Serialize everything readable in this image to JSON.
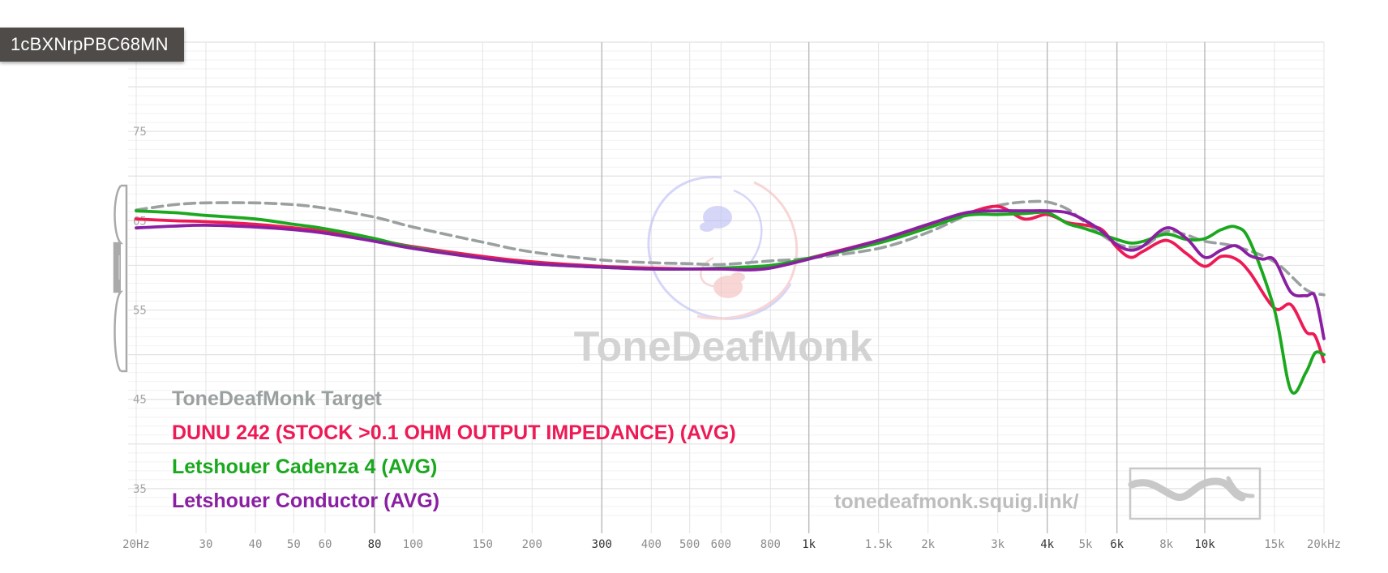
{
  "badge": "1cBXNrpPBC68MN",
  "watermark": "ToneDeafMonk",
  "url": "tonedeafmonk.squig.link/",
  "colors": {
    "target": "#9aa0a0",
    "dunu": "#ee1a55",
    "cadenza": "#1aa81e",
    "conductor": "#8a1fa2",
    "grid": "#e6e6e6",
    "grid_major": "#b9b9b9"
  },
  "chart_data": {
    "type": "line",
    "title": "",
    "xlabel": "",
    "ylabel": "",
    "x_scale": "log",
    "xlim": [
      20,
      20000
    ],
    "ylim": [
      30,
      85
    ],
    "grid": true,
    "legend_position": "bottom-left",
    "x_ticks": [
      {
        "v": 20,
        "label": "20Hz",
        "major": false
      },
      {
        "v": 30,
        "label": "30",
        "major": false
      },
      {
        "v": 40,
        "label": "40",
        "major": false
      },
      {
        "v": 50,
        "label": "50",
        "major": false
      },
      {
        "v": 60,
        "label": "60",
        "major": false
      },
      {
        "v": 80,
        "label": "80",
        "major": true
      },
      {
        "v": 100,
        "label": "100",
        "major": false
      },
      {
        "v": 150,
        "label": "150",
        "major": false
      },
      {
        "v": 200,
        "label": "200",
        "major": false
      },
      {
        "v": 300,
        "label": "300",
        "major": true
      },
      {
        "v": 400,
        "label": "400",
        "major": false
      },
      {
        "v": 500,
        "label": "500",
        "major": false
      },
      {
        "v": 600,
        "label": "600",
        "major": false
      },
      {
        "v": 800,
        "label": "800",
        "major": false
      },
      {
        "v": 1000,
        "label": "1k",
        "major": true
      },
      {
        "v": 1500,
        "label": "1.5k",
        "major": false
      },
      {
        "v": 2000,
        "label": "2k",
        "major": false
      },
      {
        "v": 3000,
        "label": "3k",
        "major": false
      },
      {
        "v": 4000,
        "label": "4k",
        "major": true
      },
      {
        "v": 5000,
        "label": "5k",
        "major": false
      },
      {
        "v": 6000,
        "label": "6k",
        "major": true
      },
      {
        "v": 8000,
        "label": "8k",
        "major": false
      },
      {
        "v": 10000,
        "label": "10k",
        "major": true
      },
      {
        "v": 15000,
        "label": "15k",
        "major": false
      },
      {
        "v": 20000,
        "label": "20kHz",
        "major": false
      }
    ],
    "y_ticks": [
      {
        "v": 75,
        "label": "75"
      },
      {
        "v": 65,
        "label": "65"
      },
      {
        "v": 55,
        "label": "55"
      },
      {
        "v": 45,
        "label": "45"
      },
      {
        "v": 35,
        "label": "35"
      }
    ],
    "series": [
      {
        "name": "ToneDeafMonk Target",
        "color": "#9aa0a0",
        "dashed": true,
        "points": [
          [
            20,
            66.2
          ],
          [
            25,
            66.8
          ],
          [
            30,
            67.0
          ],
          [
            40,
            67.0
          ],
          [
            50,
            66.8
          ],
          [
            60,
            66.4
          ],
          [
            80,
            65.4
          ],
          [
            100,
            64.3
          ],
          [
            150,
            62.6
          ],
          [
            200,
            61.5
          ],
          [
            300,
            60.6
          ],
          [
            400,
            60.3
          ],
          [
            500,
            60.2
          ],
          [
            600,
            60.1
          ],
          [
            800,
            60.5
          ],
          [
            1000,
            60.8
          ],
          [
            1500,
            61.9
          ],
          [
            2000,
            63.7
          ],
          [
            2500,
            65.6
          ],
          [
            3000,
            66.7
          ],
          [
            3500,
            67.1
          ],
          [
            4000,
            67.1
          ],
          [
            4500,
            66.3
          ],
          [
            5000,
            64.8
          ],
          [
            6000,
            62.4
          ],
          [
            7000,
            62.2
          ],
          [
            8000,
            63.8
          ],
          [
            9000,
            63.4
          ],
          [
            10000,
            62.7
          ],
          [
            12000,
            62.1
          ],
          [
            15000,
            60.4
          ],
          [
            18000,
            57.3
          ],
          [
            20000,
            56.7
          ]
        ]
      },
      {
        "name": "DUNU 242 (STOCK >0.1 OHM OUTPUT IMPEDANCE) (AVG)",
        "color": "#ee1a55",
        "dashed": false,
        "points": [
          [
            20,
            65.2
          ],
          [
            25,
            65.0
          ],
          [
            30,
            64.9
          ],
          [
            40,
            64.6
          ],
          [
            50,
            64.2
          ],
          [
            60,
            63.8
          ],
          [
            80,
            62.9
          ],
          [
            100,
            62.1
          ],
          [
            150,
            61.0
          ],
          [
            200,
            60.4
          ],
          [
            300,
            59.9
          ],
          [
            400,
            59.7
          ],
          [
            500,
            59.6
          ],
          [
            600,
            59.6
          ],
          [
            700,
            59.6
          ],
          [
            800,
            59.8
          ],
          [
            1000,
            60.8
          ],
          [
            1500,
            62.8
          ],
          [
            2000,
            64.5
          ],
          [
            2500,
            65.8
          ],
          [
            3000,
            66.6
          ],
          [
            3500,
            65.2
          ],
          [
            4000,
            65.7
          ],
          [
            4500,
            64.8
          ],
          [
            5000,
            64.5
          ],
          [
            5500,
            64.0
          ],
          [
            6000,
            62.0
          ],
          [
            6500,
            60.9
          ],
          [
            7000,
            61.6
          ],
          [
            8000,
            62.8
          ],
          [
            9000,
            61.3
          ],
          [
            10000,
            59.9
          ],
          [
            11000,
            61.0
          ],
          [
            12000,
            60.7
          ],
          [
            13000,
            59.2
          ],
          [
            15000,
            55.2
          ],
          [
            16500,
            55.6
          ],
          [
            18000,
            52.6
          ],
          [
            19000,
            52.1
          ],
          [
            20000,
            49.2
          ]
        ]
      },
      {
        "name": "Letshouer Cadenza 4 (AVG)",
        "color": "#1aa81e",
        "dashed": false,
        "points": [
          [
            20,
            66.1
          ],
          [
            25,
            65.9
          ],
          [
            30,
            65.6
          ],
          [
            40,
            65.2
          ],
          [
            50,
            64.6
          ],
          [
            60,
            64.1
          ],
          [
            80,
            63.0
          ],
          [
            100,
            62.0
          ],
          [
            150,
            60.8
          ],
          [
            200,
            60.2
          ],
          [
            300,
            59.8
          ],
          [
            400,
            59.6
          ],
          [
            500,
            59.6
          ],
          [
            600,
            59.7
          ],
          [
            800,
            60.0
          ],
          [
            1000,
            60.8
          ],
          [
            1500,
            62.5
          ],
          [
            2000,
            64.2
          ],
          [
            2500,
            65.6
          ],
          [
            3000,
            65.7
          ],
          [
            3500,
            65.8
          ],
          [
            4000,
            65.9
          ],
          [
            4500,
            64.7
          ],
          [
            5000,
            64.1
          ],
          [
            6000,
            62.9
          ],
          [
            6500,
            62.5
          ],
          [
            7000,
            62.7
          ],
          [
            8000,
            63.5
          ],
          [
            9000,
            62.9
          ],
          [
            10000,
            63.0
          ],
          [
            11000,
            64.0
          ],
          [
            12000,
            64.3
          ],
          [
            13000,
            62.7
          ],
          [
            15000,
            55.0
          ],
          [
            16500,
            46.0
          ],
          [
            18000,
            48.0
          ],
          [
            19000,
            50.2
          ],
          [
            20000,
            50.0
          ]
        ]
      },
      {
        "name": "Letshouer Conductor (AVG)",
        "color": "#8a1fa2",
        "dashed": false,
        "points": [
          [
            20,
            64.2
          ],
          [
            25,
            64.4
          ],
          [
            30,
            64.5
          ],
          [
            40,
            64.3
          ],
          [
            50,
            64.0
          ],
          [
            60,
            63.6
          ],
          [
            80,
            62.7
          ],
          [
            100,
            61.9
          ],
          [
            150,
            60.8
          ],
          [
            200,
            60.2
          ],
          [
            300,
            59.8
          ],
          [
            400,
            59.6
          ],
          [
            500,
            59.6
          ],
          [
            600,
            59.6
          ],
          [
            700,
            59.5
          ],
          [
            800,
            59.7
          ],
          [
            1000,
            60.7
          ],
          [
            1500,
            62.8
          ],
          [
            2000,
            64.6
          ],
          [
            2500,
            65.9
          ],
          [
            3000,
            66.1
          ],
          [
            3500,
            66.1
          ],
          [
            4000,
            66.1
          ],
          [
            4500,
            65.9
          ],
          [
            5000,
            65.0
          ],
          [
            5500,
            63.8
          ],
          [
            6000,
            62.3
          ],
          [
            6500,
            61.7
          ],
          [
            7000,
            62.2
          ],
          [
            8000,
            64.2
          ],
          [
            9000,
            63.0
          ],
          [
            10000,
            60.9
          ],
          [
            11000,
            61.7
          ],
          [
            12000,
            62.2
          ],
          [
            13000,
            61.1
          ],
          [
            14000,
            60.7
          ],
          [
            15000,
            60.6
          ],
          [
            16500,
            57.0
          ],
          [
            18000,
            56.6
          ],
          [
            19000,
            56.5
          ],
          [
            20000,
            51.8
          ]
        ]
      }
    ]
  }
}
